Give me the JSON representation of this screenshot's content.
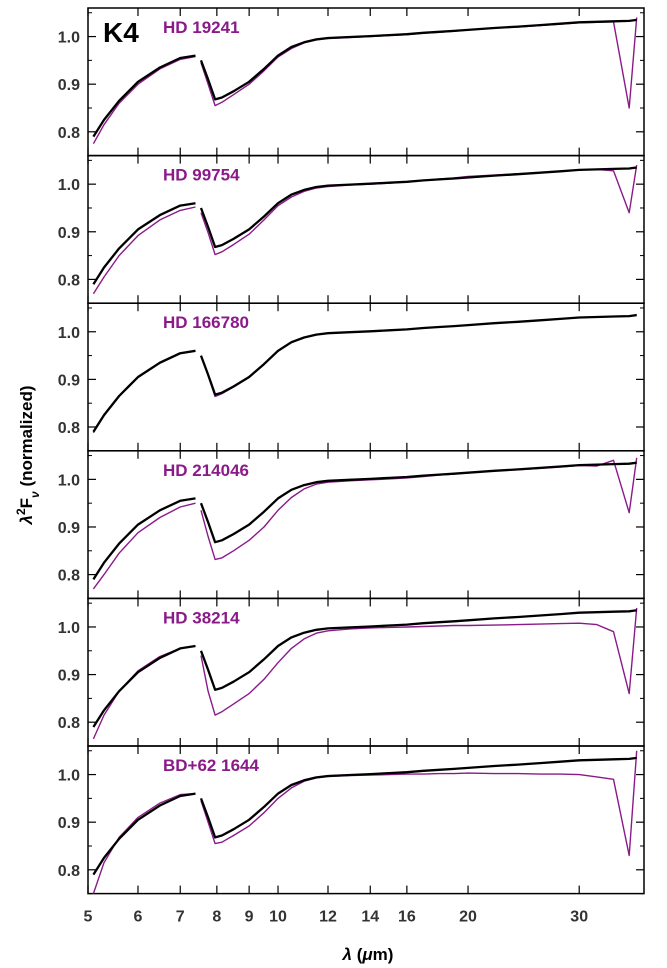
{
  "chart_data": {
    "type": "line",
    "spectral_type": "K4",
    "xlabel": "λ (μm)",
    "ylabel": "λ²F_ν (normalized)",
    "xscale": "log",
    "xlim": [
      5.0,
      38.0
    ],
    "ylim": [
      0.75,
      1.06
    ],
    "xticks": [
      5,
      6,
      7,
      8,
      9,
      10,
      12,
      14,
      16,
      20,
      30
    ],
    "yticks": [
      0.8,
      0.9,
      1.0
    ],
    "colors": {
      "template": "#000000",
      "star": "#8b1a89"
    },
    "template": {
      "x": [
        5.1,
        5.3,
        5.6,
        6.0,
        6.5,
        7.0,
        7.4,
        7.55,
        7.75,
        7.95,
        8.15,
        8.5,
        9.0,
        9.5,
        10.0,
        10.5,
        11.0,
        11.5,
        12.0,
        13.0,
        14.0,
        15.0,
        16.0,
        17.0,
        18.0,
        19.0,
        20.0,
        22.0,
        24.0,
        26.0,
        28.0,
        30.0,
        32.0,
        34.0,
        36.0,
        37.0
      ],
      "y": [
        0.79,
        0.825,
        0.865,
        0.905,
        0.935,
        0.955,
        0.96,
        0.95,
        0.91,
        0.868,
        0.872,
        0.885,
        0.905,
        0.932,
        0.96,
        0.978,
        0.988,
        0.994,
        0.997,
        0.999,
        1.001,
        1.003,
        1.005,
        1.008,
        1.01,
        1.012,
        1.014,
        1.018,
        1.021,
        1.024,
        1.027,
        1.03,
        1.031,
        1.032,
        1.033,
        1.035
      ]
    },
    "stars": [
      {
        "name": "HD 19241",
        "x": [
          5.1,
          5.3,
          5.6,
          6.0,
          6.5,
          7.0,
          7.4,
          7.55,
          7.75,
          7.95,
          8.15,
          8.5,
          9.0,
          9.5,
          10.0,
          10.5,
          11.0,
          11.5,
          12.0,
          13.0,
          14.0,
          15.0,
          16.0,
          17.0,
          18.0,
          19.0,
          20.0,
          22.0,
          24.0,
          26.0,
          28.0,
          30.0,
          32.0,
          34.0,
          36.0,
          37.0
        ],
        "y": [
          0.775,
          0.815,
          0.86,
          0.9,
          0.932,
          0.952,
          0.958,
          0.945,
          0.9,
          0.855,
          0.862,
          0.878,
          0.9,
          0.928,
          0.957,
          0.975,
          0.987,
          0.993,
          0.996,
          0.998,
          1.0,
          1.002,
          1.004,
          1.007,
          1.009,
          1.011,
          1.014,
          1.018,
          1.02,
          1.023,
          1.026,
          1.029,
          1.03,
          1.031,
          0.85,
          1.04
        ]
      },
      {
        "name": "HD 99754",
        "x": [
          5.1,
          5.3,
          5.6,
          6.0,
          6.5,
          7.0,
          7.4,
          7.55,
          7.75,
          7.95,
          8.15,
          8.5,
          9.0,
          9.5,
          10.0,
          10.5,
          11.0,
          11.5,
          12.0,
          13.0,
          14.0,
          15.0,
          16.0,
          17.0,
          18.0,
          19.0,
          20.0,
          22.0,
          24.0,
          26.0,
          28.0,
          30.0,
          32.0,
          34.0,
          36.0,
          37.0
        ],
        "y": [
          0.77,
          0.805,
          0.85,
          0.892,
          0.925,
          0.945,
          0.952,
          0.94,
          0.898,
          0.852,
          0.858,
          0.873,
          0.895,
          0.925,
          0.955,
          0.973,
          0.985,
          0.992,
          0.995,
          0.998,
          1.0,
          1.002,
          1.005,
          1.008,
          1.011,
          1.013,
          1.016,
          1.019,
          1.022,
          1.024,
          1.027,
          1.03,
          1.031,
          1.028,
          0.94,
          1.04
        ]
      },
      {
        "name": "HD 166780",
        "x": [
          5.1,
          5.3,
          5.6,
          6.0,
          6.5,
          7.0,
          7.4,
          7.55,
          7.75,
          7.95,
          8.15,
          8.5,
          9.0,
          9.5,
          10.0,
          10.5,
          11.0,
          11.5,
          12.0,
          13.0,
          14.0,
          15.0,
          16.0,
          17.0,
          18.0,
          19.0,
          20.0,
          22.0,
          24.0,
          26.0,
          28.0,
          30.0,
          32.0,
          34.0,
          36.0,
          37.0
        ],
        "y": [
          0.788,
          0.824,
          0.864,
          0.904,
          0.934,
          0.954,
          0.959,
          0.949,
          0.908,
          0.864,
          0.87,
          0.884,
          0.904,
          0.931,
          0.959,
          0.977,
          0.988,
          0.994,
          0.997,
          0.999,
          1.001,
          1.003,
          1.005,
          1.008,
          1.01,
          1.012,
          1.014,
          1.018,
          1.021,
          1.024,
          1.027,
          1.03,
          1.031,
          1.032,
          1.033,
          1.036
        ]
      },
      {
        "name": "HD 214046",
        "x": [
          5.1,
          5.3,
          5.6,
          6.0,
          6.5,
          7.0,
          7.4,
          7.55,
          7.75,
          7.95,
          8.15,
          8.5,
          9.0,
          9.5,
          10.0,
          10.5,
          11.0,
          11.5,
          12.0,
          13.0,
          14.0,
          15.0,
          16.0,
          17.0,
          18.0,
          19.0,
          20.0,
          22.0,
          24.0,
          26.0,
          28.0,
          30.0,
          32.0,
          34.0,
          36.0,
          37.0
        ],
        "y": [
          0.77,
          0.8,
          0.845,
          0.888,
          0.92,
          0.942,
          0.95,
          0.935,
          0.88,
          0.832,
          0.835,
          0.85,
          0.872,
          0.9,
          0.935,
          0.962,
          0.98,
          0.99,
          0.994,
          0.997,
          0.999,
          1.001,
          1.003,
          1.006,
          1.009,
          1.011,
          1.014,
          1.018,
          1.02,
          1.023,
          1.026,
          1.029,
          1.028,
          1.04,
          0.93,
          1.045
        ]
      },
      {
        "name": "HD 38214",
        "x": [
          5.1,
          5.3,
          5.6,
          6.0,
          6.5,
          7.0,
          7.4,
          7.55,
          7.75,
          7.95,
          8.15,
          8.5,
          9.0,
          9.5,
          10.0,
          10.5,
          11.0,
          11.5,
          12.0,
          13.0,
          14.0,
          15.0,
          16.0,
          17.0,
          18.0,
          19.0,
          20.0,
          22.0,
          24.0,
          26.0,
          28.0,
          30.0,
          32.0,
          34.0,
          36.0,
          37.0
        ],
        "y": [
          0.765,
          0.815,
          0.865,
          0.908,
          0.938,
          0.955,
          0.96,
          0.94,
          0.865,
          0.815,
          0.822,
          0.838,
          0.86,
          0.89,
          0.925,
          0.955,
          0.975,
          0.987,
          0.992,
          0.996,
          0.998,
          0.999,
          1.0,
          1.001,
          1.002,
          1.003,
          1.003,
          1.004,
          1.005,
          1.006,
          1.007,
          1.008,
          1.005,
          0.99,
          0.86,
          1.04
        ]
      },
      {
        "name": "BD+62 1644",
        "x": [
          5.1,
          5.3,
          5.6,
          6.0,
          6.5,
          7.0,
          7.4,
          7.55,
          7.75,
          7.95,
          8.15,
          8.5,
          9.0,
          9.5,
          10.0,
          10.5,
          11.0,
          11.5,
          12.0,
          13.0,
          14.0,
          15.0,
          16.0,
          17.0,
          18.0,
          19.0,
          20.0,
          22.0,
          24.0,
          26.0,
          28.0,
          30.0,
          32.0,
          34.0,
          36.0,
          37.0
        ],
        "y": [
          0.75,
          0.815,
          0.868,
          0.91,
          0.94,
          0.958,
          0.96,
          0.945,
          0.9,
          0.855,
          0.858,
          0.872,
          0.892,
          0.92,
          0.95,
          0.972,
          0.986,
          0.993,
          0.996,
          0.998,
          0.999,
          1.0,
          1.001,
          1.001,
          1.002,
          1.002,
          1.003,
          1.002,
          1.002,
          1.001,
          1.001,
          1.0,
          0.995,
          0.99,
          0.83,
          1.05
        ]
      }
    ]
  }
}
